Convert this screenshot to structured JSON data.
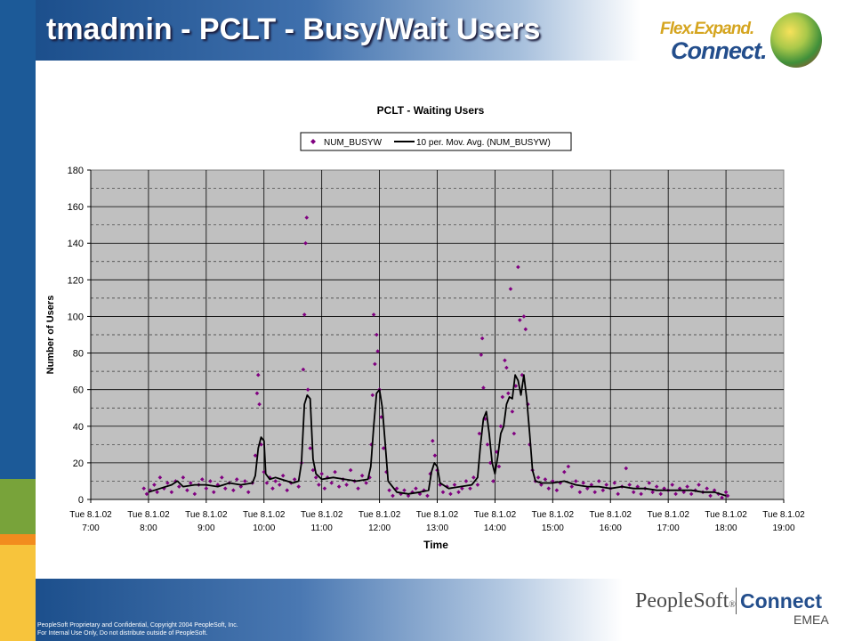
{
  "slide": {
    "title": "tmadmin - PCLT - Busy/Wait Users",
    "tagline_1": "Flex.Expand.",
    "tagline_2": "Connect.",
    "footer_line1": "PeopleSoft Proprietary and Confidential, Copyright 2004 PeopleSoft, Inc.",
    "footer_line2": "For Internal Use Only, Do not distribute outside of PeopleSoft.",
    "brand_name": "PeopleSoft",
    "brand_reg": "®",
    "brand_connect": "Connect",
    "brand_region": "EMEA"
  },
  "colors": {
    "plot_bg": "#c0c0c0",
    "points": "#800080",
    "line": "#000000",
    "title_band": "#1c4f8c"
  },
  "chart_data": {
    "type": "scatter",
    "title": "PCLT - Waiting Users",
    "xlabel": "Time",
    "ylabel": "Number of Users",
    "ylim": [
      0,
      180
    ],
    "y_ticks": [
      0,
      20,
      40,
      60,
      80,
      100,
      120,
      140,
      160,
      180
    ],
    "x_ticks": [
      {
        "value": 7,
        "line1": "Tue 8.1.02",
        "line2": "7:00"
      },
      {
        "value": 8,
        "line1": "Tue 8.1.02",
        "line2": "8:00"
      },
      {
        "value": 9,
        "line1": "Tue 8.1.02",
        "line2": "9:00"
      },
      {
        "value": 10,
        "line1": "Tue 8.1.02",
        "line2": "10:00"
      },
      {
        "value": 11,
        "line1": "Tue 8.1.02",
        "line2": "11:00"
      },
      {
        "value": 12,
        "line1": "Tue 8.1.02",
        "line2": "12:00"
      },
      {
        "value": 13,
        "line1": "Tue 8.1.02",
        "line2": "13:00"
      },
      {
        "value": 14,
        "line1": "Tue 8.1.02",
        "line2": "14:00"
      },
      {
        "value": 15,
        "line1": "Tue 8.1.02",
        "line2": "15:00"
      },
      {
        "value": 16,
        "line1": "Tue 8.1.02",
        "line2": "16:00"
      },
      {
        "value": 17,
        "line1": "Tue 8.1.02",
        "line2": "17:00"
      },
      {
        "value": 18,
        "line1": "Tue 8.1.02",
        "line2": "18:00"
      },
      {
        "value": 19,
        "line1": "Tue 8.1.02",
        "line2": "19:00"
      }
    ],
    "xlim": [
      7,
      19
    ],
    "grid": true,
    "legend_position": "top-center",
    "series": [
      {
        "name": "NUM_BUSYW",
        "type": "scatter",
        "points": [
          [
            7.92,
            6
          ],
          [
            7.97,
            3
          ],
          [
            8.03,
            5
          ],
          [
            8.1,
            8
          ],
          [
            8.15,
            4
          ],
          [
            8.2,
            12
          ],
          [
            8.27,
            6
          ],
          [
            8.33,
            9
          ],
          [
            8.4,
            4
          ],
          [
            8.47,
            10
          ],
          [
            8.53,
            7
          ],
          [
            8.6,
            12
          ],
          [
            8.67,
            5
          ],
          [
            8.73,
            9
          ],
          [
            8.8,
            3
          ],
          [
            8.87,
            8
          ],
          [
            8.93,
            11
          ],
          [
            9.0,
            6
          ],
          [
            9.07,
            10
          ],
          [
            9.13,
            4
          ],
          [
            9.2,
            8
          ],
          [
            9.27,
            12
          ],
          [
            9.33,
            6
          ],
          [
            9.4,
            9
          ],
          [
            9.47,
            5
          ],
          [
            9.53,
            11
          ],
          [
            9.6,
            7
          ],
          [
            9.67,
            10
          ],
          [
            9.73,
            4
          ],
          [
            9.8,
            9
          ],
          [
            9.85,
            24
          ],
          [
            9.88,
            58
          ],
          [
            9.9,
            68
          ],
          [
            9.92,
            52
          ],
          [
            9.95,
            30
          ],
          [
            10.0,
            15
          ],
          [
            10.05,
            9
          ],
          [
            10.1,
            12
          ],
          [
            10.15,
            6
          ],
          [
            10.2,
            10
          ],
          [
            10.27,
            8
          ],
          [
            10.33,
            13
          ],
          [
            10.4,
            5
          ],
          [
            10.47,
            9
          ],
          [
            10.53,
            11
          ],
          [
            10.6,
            7
          ],
          [
            10.65,
            20
          ],
          [
            10.68,
            71
          ],
          [
            10.7,
            101
          ],
          [
            10.72,
            140
          ],
          [
            10.74,
            154
          ],
          [
            10.76,
            60
          ],
          [
            10.8,
            28
          ],
          [
            10.85,
            16
          ],
          [
            10.9,
            12
          ],
          [
            10.95,
            8
          ],
          [
            11.0,
            14
          ],
          [
            11.05,
            6
          ],
          [
            11.1,
            12
          ],
          [
            11.17,
            9
          ],
          [
            11.23,
            15
          ],
          [
            11.3,
            7
          ],
          [
            11.37,
            11
          ],
          [
            11.43,
            8
          ],
          [
            11.5,
            16
          ],
          [
            11.57,
            10
          ],
          [
            11.63,
            6
          ],
          [
            11.7,
            13
          ],
          [
            11.77,
            9
          ],
          [
            11.83,
            12
          ],
          [
            11.86,
            30
          ],
          [
            11.88,
            57
          ],
          [
            11.9,
            101
          ],
          [
            11.92,
            74
          ],
          [
            11.95,
            90
          ],
          [
            11.97,
            81
          ],
          [
            12.0,
            60
          ],
          [
            12.03,
            45
          ],
          [
            12.07,
            28
          ],
          [
            12.12,
            15
          ],
          [
            12.17,
            5
          ],
          [
            12.23,
            2
          ],
          [
            12.3,
            6
          ],
          [
            12.37,
            3
          ],
          [
            12.43,
            5
          ],
          [
            12.5,
            2
          ],
          [
            12.57,
            4
          ],
          [
            12.63,
            6
          ],
          [
            12.7,
            3
          ],
          [
            12.77,
            5
          ],
          [
            12.83,
            2
          ],
          [
            12.88,
            14
          ],
          [
            12.92,
            32
          ],
          [
            12.96,
            24
          ],
          [
            13.0,
            16
          ],
          [
            13.05,
            8
          ],
          [
            13.1,
            4
          ],
          [
            13.17,
            7
          ],
          [
            13.23,
            3
          ],
          [
            13.3,
            8
          ],
          [
            13.37,
            4
          ],
          [
            13.43,
            6
          ],
          [
            13.5,
            10
          ],
          [
            13.57,
            6
          ],
          [
            13.63,
            12
          ],
          [
            13.7,
            8
          ],
          [
            13.73,
            36
          ],
          [
            13.76,
            79
          ],
          [
            13.78,
            88
          ],
          [
            13.8,
            61
          ],
          [
            13.83,
            44
          ],
          [
            13.87,
            30
          ],
          [
            13.92,
            20
          ],
          [
            13.97,
            10
          ],
          [
            14.03,
            26
          ],
          [
            14.07,
            18
          ],
          [
            14.1,
            40
          ],
          [
            14.13,
            56
          ],
          [
            14.17,
            76
          ],
          [
            14.2,
            72
          ],
          [
            14.23,
            58
          ],
          [
            14.27,
            115
          ],
          [
            14.3,
            48
          ],
          [
            14.33,
            36
          ],
          [
            14.36,
            62
          ],
          [
            14.4,
            127
          ],
          [
            14.43,
            98
          ],
          [
            14.47,
            68
          ],
          [
            14.5,
            100
          ],
          [
            14.53,
            93
          ],
          [
            14.57,
            52
          ],
          [
            14.6,
            30
          ],
          [
            14.65,
            16
          ],
          [
            14.7,
            10
          ],
          [
            14.75,
            12
          ],
          [
            14.8,
            8
          ],
          [
            14.87,
            11
          ],
          [
            14.93,
            6
          ],
          [
            15.0,
            10
          ],
          [
            15.07,
            5
          ],
          [
            15.13,
            9
          ],
          [
            15.2,
            15
          ],
          [
            15.27,
            18
          ],
          [
            15.33,
            7
          ],
          [
            15.4,
            10
          ],
          [
            15.47,
            4
          ],
          [
            15.53,
            9
          ],
          [
            15.6,
            6
          ],
          [
            15.67,
            8
          ],
          [
            15.73,
            4
          ],
          [
            15.8,
            10
          ],
          [
            15.87,
            5
          ],
          [
            15.93,
            8
          ],
          [
            16.0,
            6
          ],
          [
            16.07,
            9
          ],
          [
            16.13,
            3
          ],
          [
            16.2,
            7
          ],
          [
            16.27,
            17
          ],
          [
            16.33,
            8
          ],
          [
            16.4,
            4
          ],
          [
            16.47,
            7
          ],
          [
            16.53,
            3
          ],
          [
            16.6,
            6
          ],
          [
            16.67,
            9
          ],
          [
            16.73,
            4
          ],
          [
            16.8,
            7
          ],
          [
            16.87,
            3
          ],
          [
            16.93,
            6
          ],
          [
            17.0,
            5
          ],
          [
            17.07,
            8
          ],
          [
            17.13,
            3
          ],
          [
            17.2,
            6
          ],
          [
            17.27,
            4
          ],
          [
            17.33,
            7
          ],
          [
            17.4,
            3
          ],
          [
            17.47,
            5
          ],
          [
            17.53,
            8
          ],
          [
            17.6,
            4
          ],
          [
            17.67,
            6
          ],
          [
            17.73,
            2
          ],
          [
            17.8,
            5
          ],
          [
            17.87,
            3
          ],
          [
            17.93,
            1
          ],
          [
            18.0,
            4
          ],
          [
            18.03,
            2
          ]
        ]
      },
      {
        "name": "10 per. Mov. Avg. (NUM_BUSYW)",
        "type": "line",
        "points": [
          [
            8.0,
            4
          ],
          [
            8.2,
            6
          ],
          [
            8.4,
            8
          ],
          [
            8.5,
            10
          ],
          [
            8.6,
            7
          ],
          [
            8.8,
            8
          ],
          [
            9.0,
            8
          ],
          [
            9.2,
            7
          ],
          [
            9.4,
            9
          ],
          [
            9.6,
            8
          ],
          [
            9.8,
            9
          ],
          [
            9.85,
            13
          ],
          [
            9.9,
            28
          ],
          [
            9.95,
            34
          ],
          [
            10.0,
            32
          ],
          [
            10.03,
            14
          ],
          [
            10.1,
            11
          ],
          [
            10.2,
            12
          ],
          [
            10.3,
            11
          ],
          [
            10.4,
            10
          ],
          [
            10.5,
            9
          ],
          [
            10.6,
            10
          ],
          [
            10.65,
            20
          ],
          [
            10.7,
            52
          ],
          [
            10.75,
            57
          ],
          [
            10.8,
            55
          ],
          [
            10.85,
            22
          ],
          [
            10.9,
            14
          ],
          [
            11.0,
            11
          ],
          [
            11.2,
            12
          ],
          [
            11.4,
            11
          ],
          [
            11.6,
            10
          ],
          [
            11.8,
            11
          ],
          [
            11.85,
            18
          ],
          [
            11.9,
            40
          ],
          [
            11.95,
            58
          ],
          [
            12.0,
            60
          ],
          [
            12.05,
            50
          ],
          [
            12.1,
            30
          ],
          [
            12.15,
            10
          ],
          [
            12.3,
            4
          ],
          [
            12.5,
            3
          ],
          [
            12.7,
            4
          ],
          [
            12.85,
            5
          ],
          [
            12.9,
            15
          ],
          [
            12.95,
            20
          ],
          [
            13.0,
            18
          ],
          [
            13.05,
            9
          ],
          [
            13.2,
            6
          ],
          [
            13.4,
            7
          ],
          [
            13.6,
            8
          ],
          [
            13.7,
            12
          ],
          [
            13.75,
            30
          ],
          [
            13.8,
            44
          ],
          [
            13.85,
            48
          ],
          [
            13.9,
            36
          ],
          [
            13.95,
            20
          ],
          [
            14.0,
            14
          ],
          [
            14.05,
            24
          ],
          [
            14.1,
            36
          ],
          [
            14.15,
            40
          ],
          [
            14.2,
            52
          ],
          [
            14.25,
            56
          ],
          [
            14.3,
            55
          ],
          [
            14.35,
            68
          ],
          [
            14.4,
            65
          ],
          [
            14.45,
            57
          ],
          [
            14.5,
            68
          ],
          [
            14.55,
            55
          ],
          [
            14.6,
            36
          ],
          [
            14.65,
            16
          ],
          [
            14.7,
            10
          ],
          [
            14.8,
            9
          ],
          [
            15.0,
            9
          ],
          [
            15.2,
            10
          ],
          [
            15.4,
            8
          ],
          [
            15.6,
            7
          ],
          [
            15.8,
            7
          ],
          [
            16.0,
            6
          ],
          [
            16.2,
            7
          ],
          [
            16.4,
            6
          ],
          [
            16.6,
            6
          ],
          [
            16.8,
            5
          ],
          [
            17.0,
            5
          ],
          [
            17.2,
            5
          ],
          [
            17.4,
            5
          ],
          [
            17.6,
            4
          ],
          [
            17.8,
            4
          ],
          [
            17.9,
            3
          ],
          [
            18.0,
            2
          ]
        ]
      }
    ]
  }
}
